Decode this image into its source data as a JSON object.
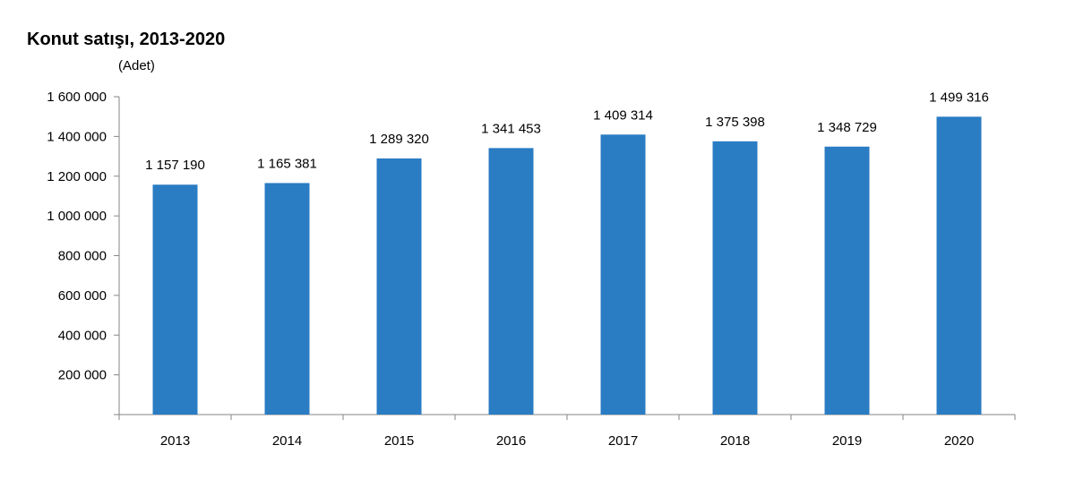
{
  "chart_data": {
    "type": "bar",
    "title": "Konut satışı, 2013-2020",
    "ylabel": "(Adet)",
    "xlabel": "",
    "categories": [
      "2013",
      "2014",
      "2015",
      "2016",
      "2017",
      "2018",
      "2019",
      "2020"
    ],
    "values": [
      1157190,
      1165381,
      1289320,
      1341453,
      1409314,
      1375398,
      1348729,
      1499316
    ],
    "value_labels": [
      "1 157 190",
      "1 165 381",
      "1 289 320",
      "1 341 453",
      "1 409 314",
      "1 375 398",
      "1 348 729",
      "1 499 316"
    ],
    "yticks": [
      200000,
      400000,
      600000,
      800000,
      1000000,
      1200000,
      1400000,
      1600000
    ],
    "ytick_labels": [
      "200 000",
      "400 000",
      "600 000",
      "800 000",
      "1 000 000",
      "1 200 000",
      "1 400 000",
      "1 600 000"
    ],
    "ylim": [
      0,
      1600000
    ],
    "grid": false,
    "legend": "none",
    "bar_color": "#2a7cc3"
  }
}
